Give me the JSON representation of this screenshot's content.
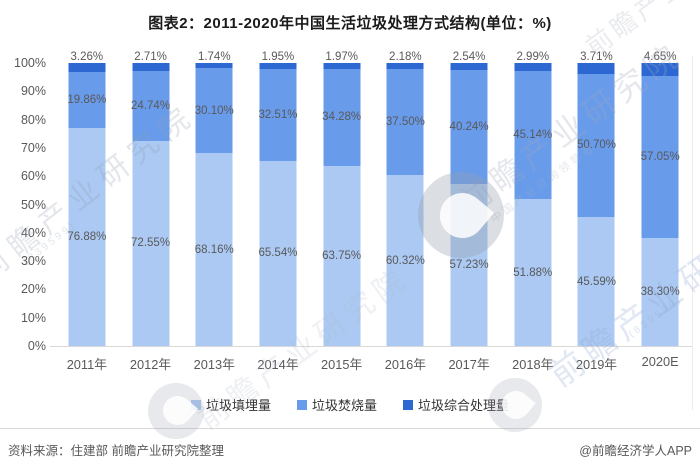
{
  "title": "图表2：2011-2020年中国生活垃圾处理方式结构(单位：%)",
  "chart_data": {
    "type": "bar",
    "stacked": true,
    "percent_stacked": true,
    "title": "图表2：2011-2020年中国生活垃圾处理方式结构(单位：%)",
    "unit": "%",
    "categories": [
      "2011年",
      "2012年",
      "2013年",
      "2014年",
      "2015年",
      "2016年",
      "2017年",
      "2018年",
      "2019年",
      "2020E"
    ],
    "series": [
      {
        "key": "landfill",
        "name": "垃圾填埋量",
        "color": "#ABC9F2",
        "values": [
          76.88,
          72.55,
          68.16,
          65.54,
          63.75,
          60.32,
          57.23,
          51.88,
          45.59,
          38.3
        ]
      },
      {
        "key": "incineration",
        "name": "垃圾焚烧量",
        "color": "#699BEB",
        "values": [
          19.86,
          24.74,
          30.1,
          32.51,
          34.28,
          37.5,
          40.24,
          45.14,
          50.7,
          57.05
        ]
      },
      {
        "key": "comprehensive",
        "name": "垃圾综合处理量",
        "color": "#2D67D2",
        "values": [
          3.26,
          2.71,
          1.74,
          1.95,
          1.97,
          2.18,
          2.54,
          2.99,
          3.71,
          4.65
        ]
      }
    ],
    "y_ticks": [
      "100%",
      "90%",
      "80%",
      "70%",
      "60%",
      "50%",
      "40%",
      "30%",
      "20%",
      "10%",
      "0%"
    ],
    "ylim": [
      0,
      100
    ],
    "grid": false,
    "legend_position": "bottom",
    "axis_color": "#d9d9d9",
    "label_color": "#595959"
  },
  "footer": {
    "source": "资料来源：住建部 前瞻产业研究院整理",
    "credit": "@前瞻经济学人APP"
  },
  "watermark": {
    "brand": "前瞻产业研究院",
    "tagline": "中国产业咨询领导者",
    "stock_code": "(839599)"
  }
}
